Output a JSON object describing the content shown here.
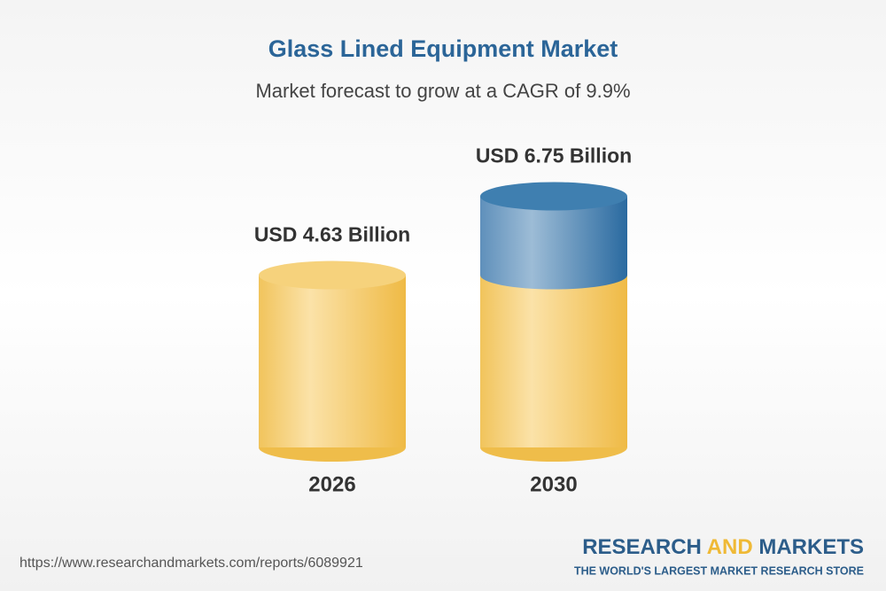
{
  "chart_data": {
    "type": "cylinder",
    "title": "Glass Lined Equipment Market",
    "subtitle": "Market forecast to grow at a CAGR of 9.9%",
    "categories": [
      "2026",
      "2030"
    ],
    "values": [
      4.63,
      6.75
    ],
    "value_labels": [
      "USD 4.63 Billion",
      "USD 6.75 Billion"
    ],
    "color": "#f2c14e",
    "growth_color": "#3f7fb0"
  },
  "footer": {
    "url": "https://www.researchandmarkets.com/reports/6089921",
    "brand": [
      "RESEARCH",
      "AND",
      "MARKETS"
    ],
    "tagline": "THE WORLD'S LARGEST MARKET RESEARCH STORE"
  }
}
